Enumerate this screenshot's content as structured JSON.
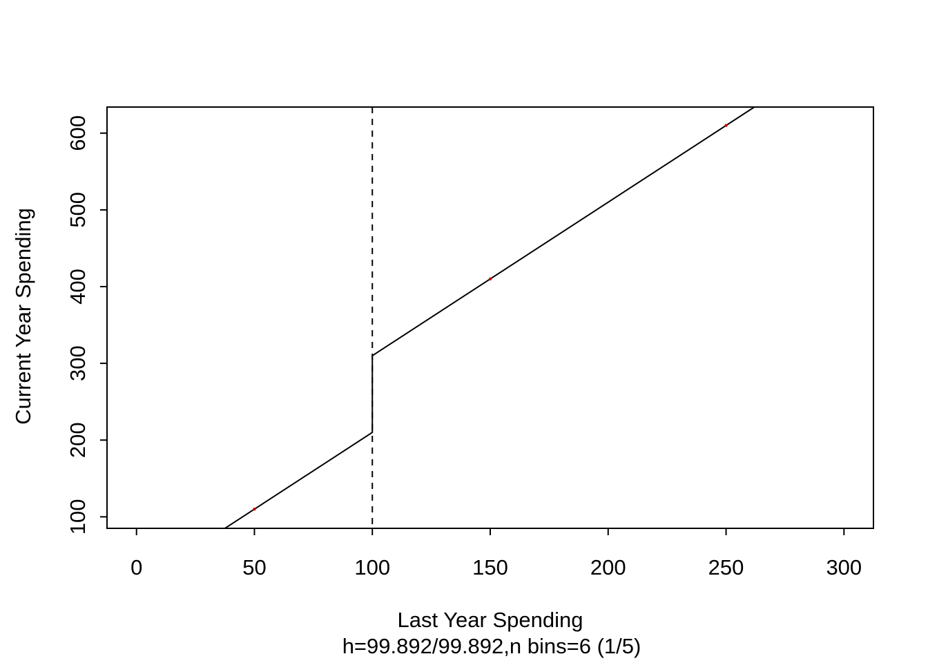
{
  "figure": {
    "background": "#ffffff",
    "line_color": "#000000",
    "point_color": "#cc0000"
  },
  "chart_data": {
    "type": "line",
    "title": "",
    "xlabel": "Last Year Spending",
    "xlabel_line2": "h=99.892/99.892,n bins=6 (1/5)",
    "ylabel": "Current Year Spending",
    "xlim": [
      -12.5,
      312.5
    ],
    "ylim": [
      85,
      634
    ],
    "x_ticks": [
      0,
      50,
      100,
      150,
      200,
      250,
      300
    ],
    "y_ticks": [
      100,
      200,
      300,
      400,
      500,
      600
    ],
    "grid": false,
    "legend": null,
    "series": [
      {
        "name": "spending-schedule-line",
        "color": "#000000",
        "width": 2,
        "points": [
          [
            37.5,
            85
          ],
          [
            100,
            210
          ],
          [
            100,
            310
          ],
          [
            262,
            634
          ]
        ]
      }
    ],
    "reference_lines": [
      {
        "name": "notch-threshold-vline",
        "orientation": "vertical",
        "x": 100,
        "style": "dashed",
        "color": "#000000"
      }
    ],
    "points": [
      {
        "x": 50,
        "y": 110,
        "color": "#cc0000"
      },
      {
        "x": 150,
        "y": 410,
        "color": "#cc0000"
      },
      {
        "x": 250,
        "y": 610,
        "color": "#cc0000"
      }
    ]
  }
}
